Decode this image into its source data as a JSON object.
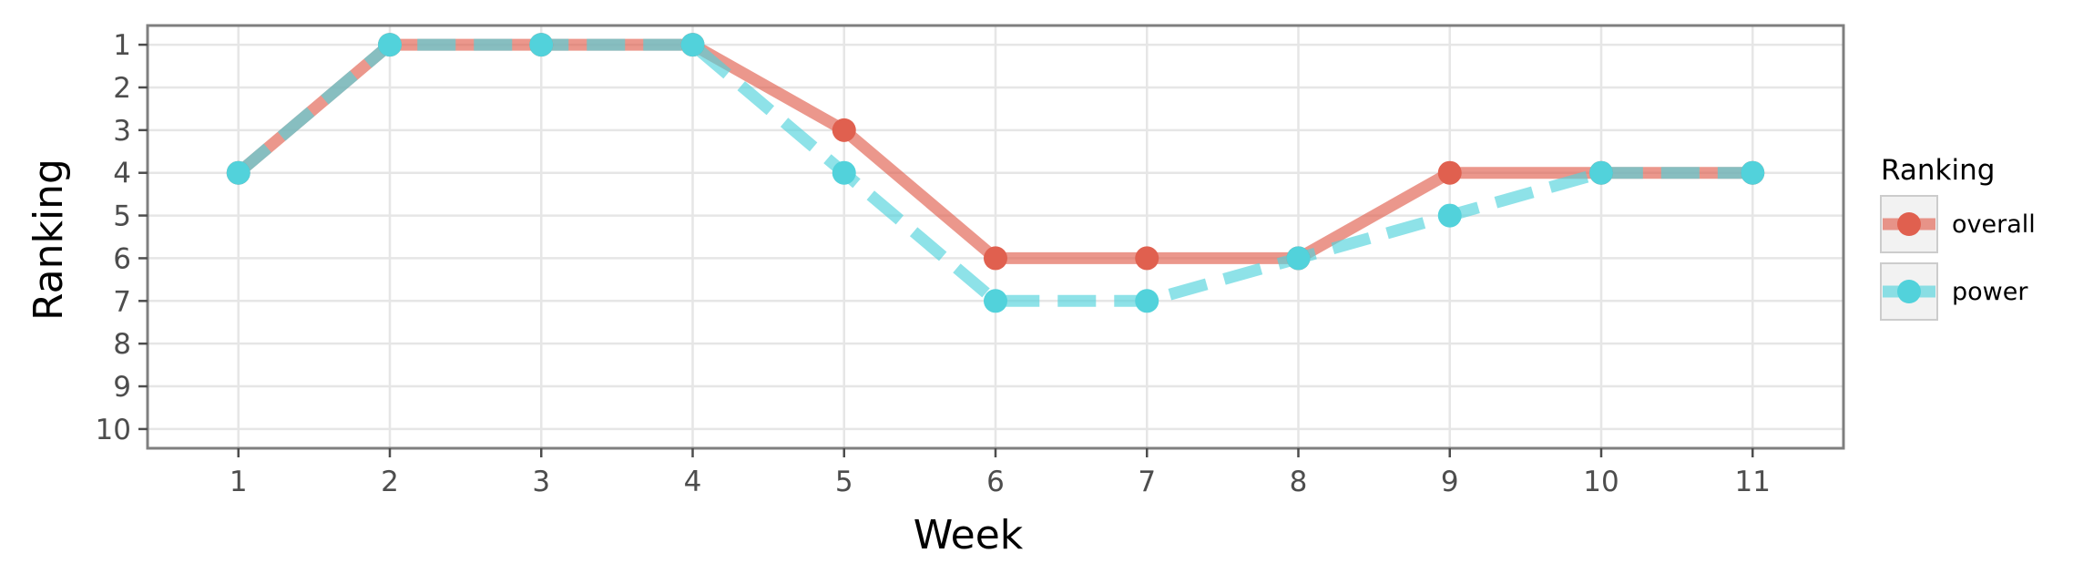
{
  "chart_data": {
    "type": "line",
    "xlabel": "Week",
    "ylabel": "Ranking",
    "x": [
      1,
      2,
      3,
      4,
      5,
      6,
      7,
      8,
      9,
      10,
      11
    ],
    "xlim": [
      0.4,
      11.6
    ],
    "ylim": [
      10.45,
      0.55
    ],
    "y_reversed": true,
    "x_ticks": [
      "1",
      "2",
      "3",
      "4",
      "5",
      "6",
      "7",
      "8",
      "9",
      "10",
      "11"
    ],
    "y_ticks": [
      "1",
      "2",
      "3",
      "4",
      "5",
      "6",
      "7",
      "8",
      "9",
      "10"
    ],
    "grid": true,
    "legend": {
      "title": "Ranking",
      "placement": "right"
    },
    "series": [
      {
        "name": "overall",
        "values": [
          4,
          1,
          1,
          1,
          3,
          6,
          6,
          6,
          4,
          4,
          4
        ],
        "color": "#e0604f",
        "line_style": "solid"
      },
      {
        "name": "power",
        "values": [
          4,
          1,
          1,
          1,
          4,
          7,
          7,
          6,
          5,
          4,
          4
        ],
        "color": "#52d2db",
        "line_style": "dashed"
      }
    ]
  }
}
